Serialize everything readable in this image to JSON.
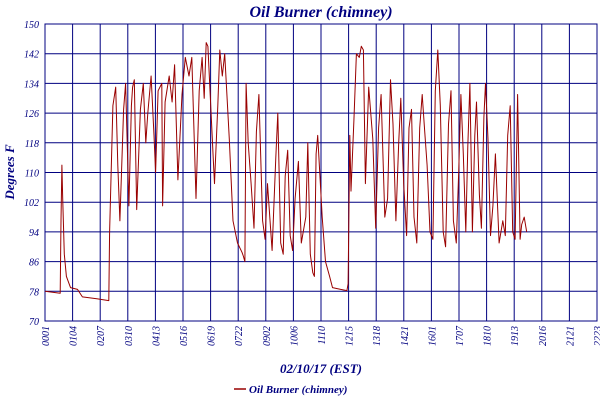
{
  "chart_data": {
    "type": "line",
    "title": "Oil Burner (chimney)",
    "xlabel": "02/10/17 (EST)",
    "ylabel": "Degrees F",
    "ylim": [
      70,
      150
    ],
    "yticks": [
      70,
      78,
      86,
      94,
      102,
      110,
      118,
      126,
      134,
      142,
      150
    ],
    "x_unit": "time of day (HH:MM), 02/10/17",
    "xlim": [
      "00:01",
      "22:23"
    ],
    "xtick_labels": [
      "0001",
      "0104",
      "0207",
      "0310",
      "0413",
      "0516",
      "0619",
      "0722",
      "0902",
      "1006",
      "1110",
      "1215",
      "1318",
      "1421",
      "1601",
      "1707",
      "1810",
      "1913",
      "2016",
      "2121",
      "2223"
    ],
    "grid": true,
    "legend": "bottom-center",
    "colors": {
      "series": "#990000",
      "grid": "#000080",
      "text": "#000080",
      "background": "#ffffff"
    },
    "series": [
      {
        "name": "Oil Burner (chimney)",
        "points": [
          [
            "00:01",
            78
          ],
          [
            "00:38",
            77.5
          ],
          [
            "00:40",
            97
          ],
          [
            "00:42",
            112
          ],
          [
            "00:44",
            103
          ],
          [
            "00:48",
            88
          ],
          [
            "00:53",
            82
          ],
          [
            "01:03",
            79
          ],
          [
            "01:20",
            78.5
          ],
          [
            "01:32",
            76.5
          ],
          [
            "02:07",
            76
          ],
          [
            "02:36",
            75.5
          ],
          [
            "02:38",
            94
          ],
          [
            "02:46",
            128
          ],
          [
            "02:53",
            133
          ],
          [
            "02:58",
            112
          ],
          [
            "03:03",
            97
          ],
          [
            "03:12",
            127
          ],
          [
            "03:17",
            134
          ],
          [
            "03:25",
            101
          ],
          [
            "03:31",
            128
          ],
          [
            "03:34",
            133
          ],
          [
            "03:38",
            135
          ],
          [
            "03:44",
            100
          ],
          [
            "03:53",
            127
          ],
          [
            "04:00",
            134
          ],
          [
            "04:06",
            118
          ],
          [
            "04:11",
            126
          ],
          [
            "04:19",
            136
          ],
          [
            "04:26",
            120
          ],
          [
            "04:30",
            110
          ],
          [
            "04:36",
            132
          ],
          [
            "04:45",
            134
          ],
          [
            "04:47",
            101
          ],
          [
            "04:53",
            129
          ],
          [
            "05:03",
            136
          ],
          [
            "05:10",
            129
          ],
          [
            "05:16",
            139
          ],
          [
            "05:24",
            108
          ],
          [
            "05:34",
            131
          ],
          [
            "05:42",
            141
          ],
          [
            "05:51",
            136
          ],
          [
            "05:58",
            141
          ],
          [
            "06:08",
            103
          ],
          [
            "06:16",
            132
          ],
          [
            "06:23",
            141
          ],
          [
            "06:28",
            130
          ],
          [
            "06:33",
            145
          ],
          [
            "06:37",
            144
          ],
          [
            "06:50",
            114
          ],
          [
            "06:53",
            107
          ],
          [
            "07:01",
            128
          ],
          [
            "07:06",
            143
          ],
          [
            "07:12",
            136
          ],
          [
            "07:18",
            142
          ],
          [
            "07:29",
            119
          ],
          [
            "07:38",
            97
          ],
          [
            "07:49",
            91
          ],
          [
            "08:00",
            88.5
          ],
          [
            "08:03",
            87.5
          ],
          [
            "08:07",
            86
          ],
          [
            "08:10",
            134
          ],
          [
            "08:15",
            118
          ],
          [
            "08:22",
            107
          ],
          [
            "08:29",
            95
          ],
          [
            "08:35",
            121
          ],
          [
            "08:41",
            131
          ],
          [
            "08:50",
            97
          ],
          [
            "08:56",
            92
          ],
          [
            "09:02",
            107
          ],
          [
            "09:13",
            89
          ],
          [
            "09:22",
            114
          ],
          [
            "09:27",
            126
          ],
          [
            "09:34",
            91
          ],
          [
            "09:40",
            88
          ],
          [
            "09:45",
            109
          ],
          [
            "09:51",
            116
          ],
          [
            "09:57",
            93
          ],
          [
            "10:03",
            89
          ],
          [
            "10:09",
            103
          ],
          [
            "10:17",
            113
          ],
          [
            "10:24",
            91
          ],
          [
            "10:35",
            98
          ],
          [
            "10:40",
            118
          ],
          [
            "10:43",
            102
          ],
          [
            "10:46",
            88
          ],
          [
            "10:52",
            83
          ],
          [
            "10:56",
            82
          ],
          [
            "11:00",
            115
          ],
          [
            "11:04",
            120
          ],
          [
            "11:15",
            98
          ],
          [
            "11:23",
            86
          ],
          [
            "11:33",
            82
          ],
          [
            "11:40",
            79
          ],
          [
            "12:00",
            78.5
          ],
          [
            "12:15",
            78.2
          ],
          [
            "12:18",
            80
          ],
          [
            "12:22",
            120
          ],
          [
            "12:25",
            105
          ],
          [
            "12:32",
            124
          ],
          [
            "12:38",
            142
          ],
          [
            "12:45",
            141
          ],
          [
            "12:50",
            144
          ],
          [
            "12:55",
            143
          ],
          [
            "13:00",
            107
          ],
          [
            "13:08",
            133
          ],
          [
            "13:18",
            119
          ],
          [
            "13:25",
            95
          ],
          [
            "13:32",
            122
          ],
          [
            "13:38",
            131
          ],
          [
            "13:47",
            98
          ],
          [
            "13:54",
            103
          ],
          [
            "14:01",
            135
          ],
          [
            "14:07",
            123
          ],
          [
            "14:14",
            97
          ],
          [
            "14:21",
            118
          ],
          [
            "14:26",
            130
          ],
          [
            "14:33",
            107
          ],
          [
            "14:40",
            93
          ],
          [
            "14:46",
            122
          ],
          [
            "14:52",
            127
          ],
          [
            "14:58",
            98
          ],
          [
            "15:05",
            91
          ],
          [
            "15:12",
            122
          ],
          [
            "15:18",
            131
          ],
          [
            "15:23",
            123
          ],
          [
            "15:30",
            112
          ],
          [
            "15:37",
            94
          ],
          [
            "15:44",
            92
          ],
          [
            "15:50",
            132
          ],
          [
            "15:56",
            143
          ],
          [
            "16:02",
            128
          ],
          [
            "16:09",
            94
          ],
          [
            "16:15",
            90
          ],
          [
            "16:22",
            123
          ],
          [
            "16:28",
            132
          ],
          [
            "16:34",
            97
          ],
          [
            "16:41",
            91
          ],
          [
            "16:47",
            111
          ],
          [
            "16:52",
            131
          ],
          [
            "16:58",
            115
          ],
          [
            "17:04",
            94
          ],
          [
            "17:09",
            117
          ],
          [
            "17:14",
            134
          ],
          [
            "17:20",
            94
          ],
          [
            "17:26",
            120
          ],
          [
            "17:30",
            129
          ],
          [
            "17:37",
            104
          ],
          [
            "17:42",
            95
          ],
          [
            "17:48",
            125
          ],
          [
            "17:52",
            134
          ],
          [
            "17:58",
            119
          ],
          [
            "18:04",
            93
          ],
          [
            "18:10",
            101
          ],
          [
            "18:16",
            115
          ],
          [
            "18:25",
            91
          ],
          [
            "18:34",
            97
          ],
          [
            "18:40",
            93
          ],
          [
            "18:46",
            120
          ],
          [
            "18:52",
            128
          ],
          [
            "18:58",
            94
          ],
          [
            "19:04",
            92
          ],
          [
            "19:10",
            131
          ],
          [
            "19:16",
            92
          ],
          [
            "19:20",
            96
          ],
          [
            "19:26",
            98
          ],
          [
            "19:32",
            94
          ]
        ]
      }
    ]
  },
  "legend": {
    "label": "Oil Burner (chimney)"
  }
}
